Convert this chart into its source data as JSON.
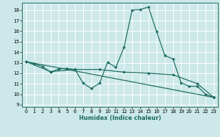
{
  "xlabel": "Humidex (Indice chaleur)",
  "bg_color": "#cce8e8",
  "grid_color": "#ffffff",
  "line_color": "#1a6b5e",
  "xlim": [
    -0.5,
    23.5
  ],
  "ylim": [
    8.8,
    18.7
  ],
  "yticks": [
    9,
    10,
    11,
    12,
    13,
    14,
    15,
    16,
    17,
    18
  ],
  "xticks": [
    0,
    1,
    2,
    3,
    4,
    5,
    6,
    7,
    8,
    9,
    10,
    11,
    12,
    13,
    14,
    15,
    16,
    17,
    18,
    19,
    20,
    21,
    22,
    23
  ],
  "curve1_x": [
    0,
    1,
    2,
    3,
    4,
    5,
    6,
    7,
    8,
    9,
    10,
    11,
    12,
    13,
    14,
    15,
    16,
    17,
    18,
    19,
    20,
    21,
    22,
    23
  ],
  "curve1_y": [
    13.1,
    12.9,
    12.65,
    12.1,
    12.4,
    12.45,
    12.35,
    11.05,
    10.55,
    11.05,
    13.05,
    12.55,
    14.45,
    18.0,
    18.05,
    18.3,
    15.95,
    13.7,
    13.35,
    11.1,
    10.75,
    10.75,
    10.0,
    9.7
  ],
  "curve2_x": [
    0,
    3,
    6,
    9,
    12,
    15,
    18,
    21,
    23
  ],
  "curve2_y": [
    13.1,
    12.15,
    12.35,
    12.35,
    12.1,
    12.0,
    11.85,
    11.0,
    9.7
  ],
  "curve3_x": [
    0,
    23
  ],
  "curve3_y": [
    13.1,
    9.7
  ],
  "lw": 0.9,
  "ms": 2.0,
  "tick_fontsize": 5.0,
  "xlabel_fontsize": 6.0
}
